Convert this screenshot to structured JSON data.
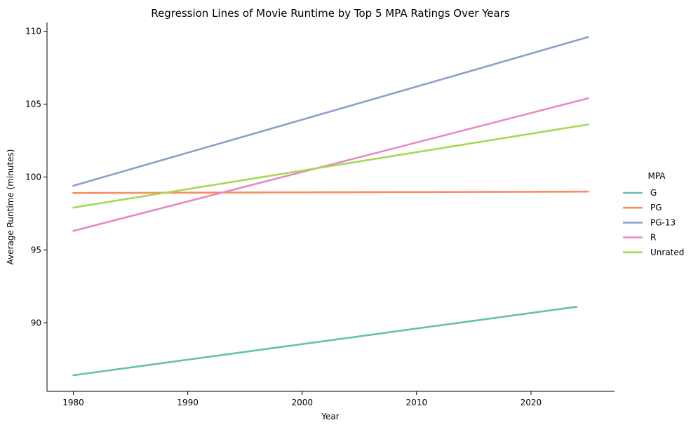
{
  "chart_data": {
    "type": "line",
    "title": "Regression Lines of Movie Runtime by Top 5 MPA Ratings Over Years",
    "xlabel": "Year",
    "ylabel": "Average Runtime (minutes)",
    "xlim": [
      1977.7,
      2027.3
    ],
    "ylim": [
      85.3,
      110.6
    ],
    "xticks": [
      1980,
      1990,
      2000,
      2010,
      2020
    ],
    "yticks": [
      90,
      95,
      100,
      105,
      110
    ],
    "grid": false,
    "legend": {
      "title": "MPA",
      "position": "right"
    },
    "series": [
      {
        "name": "G",
        "color": "#66c2a5",
        "x": [
          1980,
          2024
        ],
        "y": [
          86.4,
          91.1
        ]
      },
      {
        "name": "PG",
        "color": "#fc8d62",
        "x": [
          1980,
          2025
        ],
        "y": [
          98.9,
          99.0
        ]
      },
      {
        "name": "PG-13",
        "color": "#8da0cb",
        "x": [
          1980,
          2025
        ],
        "y": [
          99.4,
          109.6
        ]
      },
      {
        "name": "R",
        "color": "#e78ac3",
        "x": [
          1980,
          2025
        ],
        "y": [
          96.3,
          105.4
        ]
      },
      {
        "name": "Unrated",
        "color": "#a6d854",
        "x": [
          1980,
          2025
        ],
        "y": [
          97.9,
          103.6
        ]
      }
    ]
  }
}
